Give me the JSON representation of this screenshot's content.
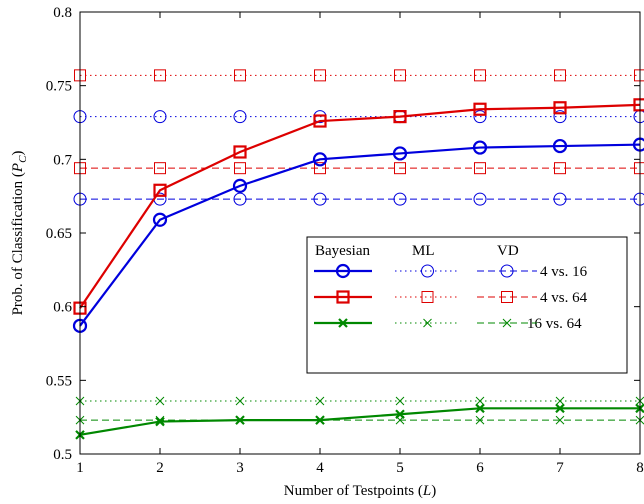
{
  "chart_data": {
    "type": "line",
    "xlabel": "Number of Testpoints (L)",
    "ylabel": "Prob. of Classification (P_C)",
    "xlabel_parts": {
      "pre": "Number of Testpoints (",
      "var": "L",
      "post": ")"
    },
    "ylabel_parts": {
      "pre": "Prob. of Classification (",
      "var": "P",
      "sub": "C",
      "post": ")"
    },
    "x": [
      1,
      2,
      3,
      4,
      5,
      6,
      7,
      8
    ],
    "xlim": [
      1,
      8
    ],
    "ylim": [
      0.5,
      0.8
    ],
    "x_ticks": [
      "1",
      "2",
      "3",
      "4",
      "5",
      "6",
      "7",
      "8"
    ],
    "y_ticks": [
      "0.5",
      "0.55",
      "0.6",
      "0.65",
      "0.7",
      "0.75",
      "0.8"
    ],
    "grid": false,
    "legend": {
      "placement": "center-right",
      "headers": [
        "Bayesian",
        "ML",
        "VD"
      ],
      "rows": [
        "4 vs. 16",
        "4 vs. 64",
        "16 vs. 64"
      ]
    },
    "series": [
      {
        "name": "Bayesian 4 vs. 16",
        "method": "Bayesian",
        "pair": "4 vs. 16",
        "color": "#0000dd",
        "marker": "circle",
        "dash": "solid",
        "values": [
          0.587,
          0.659,
          0.682,
          0.7,
          0.704,
          0.708,
          0.709,
          0.71
        ]
      },
      {
        "name": "ML 4 vs. 16",
        "method": "ML",
        "pair": "4 vs. 16",
        "color": "#0000dd",
        "marker": "circle",
        "dash": "dotted",
        "values": [
          0.729,
          0.729,
          0.729,
          0.729,
          0.729,
          0.729,
          0.729,
          0.729
        ]
      },
      {
        "name": "VD 4 vs. 16",
        "method": "VD",
        "pair": "4 vs. 16",
        "color": "#0000dd",
        "marker": "circle",
        "dash": "dashed",
        "values": [
          0.673,
          0.673,
          0.673,
          0.673,
          0.673,
          0.673,
          0.673,
          0.673
        ]
      },
      {
        "name": "Bayesian 4 vs. 64",
        "method": "Bayesian",
        "pair": "4 vs. 64",
        "color": "#dd0000",
        "marker": "square",
        "dash": "solid",
        "values": [
          0.599,
          0.679,
          0.705,
          0.726,
          0.729,
          0.734,
          0.735,
          0.737
        ]
      },
      {
        "name": "ML 4 vs. 64",
        "method": "ML",
        "pair": "4 vs. 64",
        "color": "#dd0000",
        "marker": "square",
        "dash": "dotted",
        "values": [
          0.757,
          0.757,
          0.757,
          0.757,
          0.757,
          0.757,
          0.757,
          0.757
        ]
      },
      {
        "name": "VD 4 vs. 64",
        "method": "VD",
        "pair": "4 vs. 64",
        "color": "#dd0000",
        "marker": "square",
        "dash": "dashed",
        "values": [
          0.694,
          0.694,
          0.694,
          0.694,
          0.694,
          0.694,
          0.694,
          0.694
        ]
      },
      {
        "name": "Bayesian 16 vs. 64",
        "method": "Bayesian",
        "pair": "16 vs. 64",
        "color": "#008800",
        "marker": "x",
        "dash": "solid",
        "values": [
          0.513,
          0.522,
          0.523,
          0.523,
          0.527,
          0.531,
          0.531,
          0.531
        ]
      },
      {
        "name": "ML 16 vs. 64",
        "method": "ML",
        "pair": "16 vs. 64",
        "color": "#008800",
        "marker": "x",
        "dash": "dotted",
        "values": [
          0.536,
          0.536,
          0.536,
          0.536,
          0.536,
          0.536,
          0.536,
          0.536
        ]
      },
      {
        "name": "VD 16 vs. 64",
        "method": "VD",
        "pair": "16 vs. 64",
        "color": "#008800",
        "marker": "x",
        "dash": "dashed",
        "values": [
          0.523,
          0.523,
          0.523,
          0.523,
          0.523,
          0.523,
          0.523,
          0.523
        ]
      }
    ]
  }
}
